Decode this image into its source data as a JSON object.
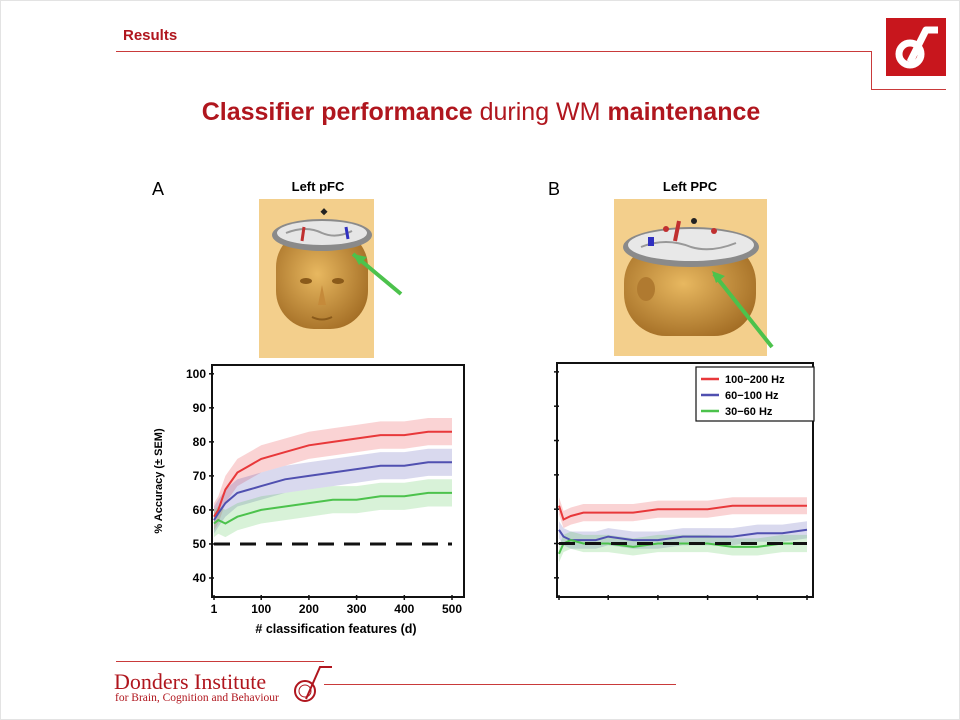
{
  "header": {
    "section": "Results"
  },
  "title": {
    "part1": "Classifier performance",
    "part2": " during WM ",
    "part3": "maintenance"
  },
  "footer": {
    "name": "Donders Institute",
    "subtitle": "for Brain, Cognition and Behaviour"
  },
  "colors": {
    "brand": "#b0161e",
    "s100_200": "#e8383a",
    "s60_100": "#5050b0",
    "s30_60": "#4cc24c"
  },
  "panel_a": {
    "letter": "A",
    "head_label": "Left pFC"
  },
  "panel_b": {
    "letter": "B",
    "head_label": "Left PPC"
  },
  "chart_data": [
    {
      "type": "line",
      "panel": "A",
      "xlabel": "# classification features (d)",
      "ylabel": "% Accuracy (± SEM)",
      "xlim": [
        1,
        500
      ],
      "ylim": [
        35,
        102
      ],
      "xticks": [
        1,
        100,
        200,
        300,
        400,
        500
      ],
      "yticks": [
        40,
        50,
        60,
        70,
        80,
        90,
        100
      ],
      "chance_level": 50,
      "x": [
        1,
        10,
        25,
        50,
        75,
        100,
        150,
        200,
        250,
        300,
        350,
        400,
        450,
        500
      ],
      "series": [
        {
          "name": "100−200 Hz",
          "values": [
            58,
            60,
            66,
            71,
            73,
            75,
            77,
            79,
            80,
            81,
            82,
            82,
            83,
            83
          ],
          "sem": 4
        },
        {
          "name": "60−100 Hz",
          "values": [
            57,
            59,
            62,
            65,
            66,
            67,
            69,
            70,
            71,
            72,
            73,
            73,
            74,
            74
          ],
          "sem": 4
        },
        {
          "name": "30−60 Hz",
          "values": [
            56,
            57,
            56,
            58,
            59,
            60,
            61,
            62,
            63,
            63,
            64,
            64,
            65,
            65
          ],
          "sem": 4
        }
      ]
    },
    {
      "type": "line",
      "panel": "B",
      "xlim": [
        1,
        500
      ],
      "ylim": [
        35,
        102
      ],
      "chance_level": 50,
      "legend": "top-right",
      "x": [
        1,
        10,
        25,
        50,
        75,
        100,
        150,
        200,
        250,
        300,
        350,
        400,
        450,
        500
      ],
      "series": [
        {
          "name": "100−200 Hz",
          "values": [
            61,
            57,
            58,
            59,
            59,
            59,
            59,
            60,
            60,
            60,
            61,
            61,
            61,
            61
          ],
          "sem": 2.5
        },
        {
          "name": "60−100 Hz",
          "values": [
            54,
            52,
            51,
            51,
            51,
            52,
            51,
            51,
            52,
            52,
            52,
            53,
            53,
            54
          ],
          "sem": 2.5
        },
        {
          "name": "30−60 Hz",
          "values": [
            47,
            50,
            51,
            50,
            50,
            50,
            49,
            50,
            50,
            50,
            49,
            49,
            50,
            50
          ],
          "sem": 2.5
        }
      ]
    }
  ]
}
